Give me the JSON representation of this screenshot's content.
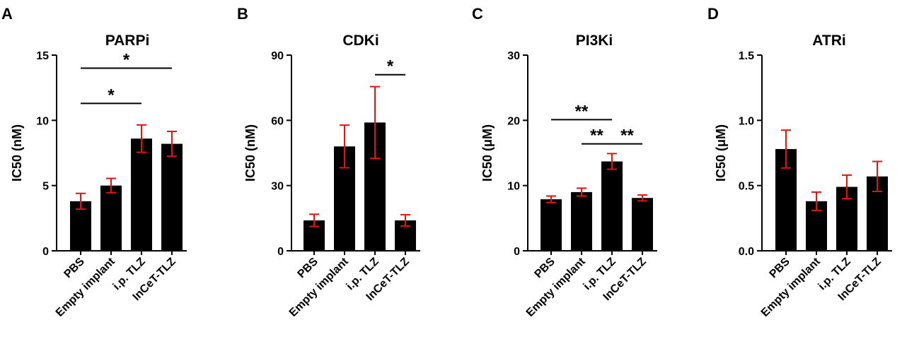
{
  "colors": {
    "bar": "#000000",
    "error": "#e8120c",
    "axis": "#000000"
  },
  "chart_data": [
    {
      "type": "bar",
      "panel": "A",
      "title": "PARPi",
      "ylabel": "IC50 (nM)",
      "ylim": [
        0,
        15
      ],
      "yticks": [
        0,
        5,
        10,
        15
      ],
      "ytick_labels": [
        "0",
        "5",
        "10",
        "15"
      ],
      "categories": [
        "PBS",
        "Empty implant",
        "i.p. TLZ",
        "InCeT-TLZ"
      ],
      "values": [
        3.8,
        5.0,
        8.6,
        8.2
      ],
      "errors": [
        0.6,
        0.55,
        1.05,
        0.95
      ],
      "significance": [
        {
          "from": 0,
          "to": 3,
          "label": "*",
          "y": 14.0
        },
        {
          "from": 0,
          "to": 2,
          "label": "*",
          "y": 11.3
        }
      ]
    },
    {
      "type": "bar",
      "panel": "B",
      "title": "CDKi",
      "ylabel": "IC50 (nM)",
      "ylim": [
        0,
        90
      ],
      "yticks": [
        0,
        30,
        60,
        90
      ],
      "ytick_labels": [
        "0",
        "30",
        "60",
        "90"
      ],
      "categories": [
        "PBS",
        "Empty implant",
        "i.p. TLZ",
        "InCeT-TLZ"
      ],
      "values": [
        14,
        48,
        59,
        14
      ],
      "errors": [
        2.8,
        9.8,
        16.5,
        2.6
      ],
      "significance": [
        {
          "from": 2,
          "to": 3,
          "label": "*",
          "y": 81
        }
      ]
    },
    {
      "type": "bar",
      "panel": "C",
      "title": "PI3Ki",
      "ylabel": "IC50 (μM)",
      "ylim": [
        0,
        30
      ],
      "yticks": [
        0,
        10,
        20,
        30
      ],
      "ytick_labels": [
        "0",
        "10",
        "20",
        "30"
      ],
      "categories": [
        "PBS",
        "Empty implant",
        "i.p. TLZ",
        "InCeT-TLZ"
      ],
      "values": [
        7.9,
        9.0,
        13.7,
        8.1
      ],
      "errors": [
        0.5,
        0.6,
        1.2,
        0.45
      ],
      "significance": [
        {
          "from": 0,
          "to": 2,
          "label": "**",
          "y": 20.1
        },
        {
          "from": 1,
          "to": 2,
          "label": "**",
          "y": 16.4
        },
        {
          "from": 2,
          "to": 3,
          "label": "**",
          "y": 16.4
        }
      ]
    },
    {
      "type": "bar",
      "panel": "D",
      "title": "ATRi",
      "ylabel": "IC50 (μM)",
      "ylim": [
        0,
        1.5
      ],
      "yticks": [
        0,
        0.5,
        1.0,
        1.5
      ],
      "ytick_labels": [
        "0.0",
        "0.5",
        "1.0",
        "1.5"
      ],
      "categories": [
        "PBS",
        "Empty implant",
        "i.p. TLZ",
        "InCeT-TLZ"
      ],
      "values": [
        0.78,
        0.38,
        0.49,
        0.57
      ],
      "errors": [
        0.145,
        0.07,
        0.09,
        0.115
      ],
      "significance": []
    }
  ]
}
